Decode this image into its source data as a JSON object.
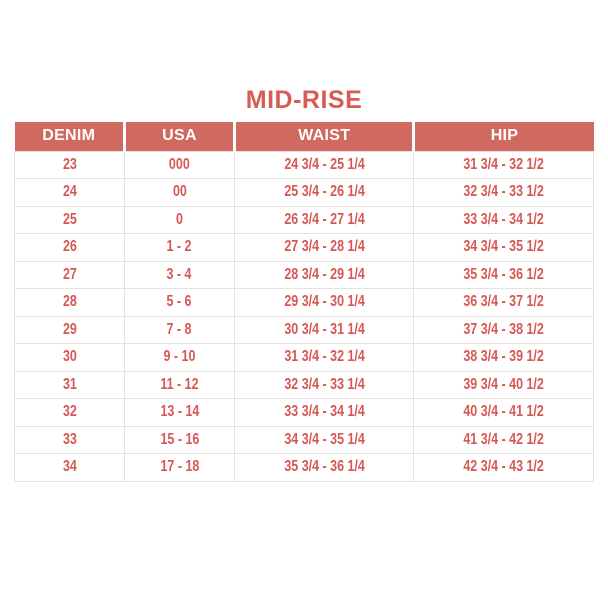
{
  "title": "MID-RISE",
  "colors": {
    "header_bg": "#d0695f",
    "title_color": "#d75c55",
    "cell_color": "#d65753",
    "border_color": "#e7e1e0",
    "header_divider": "#ffffff"
  },
  "table": {
    "columns": [
      "DENIM",
      "USA",
      "WAIST",
      "HIP"
    ],
    "column_keys": [
      "denim",
      "usa",
      "waist",
      "hip"
    ],
    "rows": [
      [
        "23",
        "000",
        "24 3/4 - 25 1/4",
        "31 3/4 - 32 1/2"
      ],
      [
        "24",
        "00",
        "25 3/4 - 26 1/4",
        "32 3/4 - 33 1/2"
      ],
      [
        "25",
        "0",
        "26 3/4 - 27 1/4",
        "33 3/4 - 34 1/2"
      ],
      [
        "26",
        "1 - 2",
        "27 3/4 - 28 1/4",
        "34 3/4 - 35 1/2"
      ],
      [
        "27",
        "3 - 4",
        "28 3/4 - 29 1/4",
        "35 3/4 - 36 1/2"
      ],
      [
        "28",
        "5 - 6",
        "29 3/4 - 30 1/4",
        "36 3/4 - 37 1/2"
      ],
      [
        "29",
        "7 - 8",
        "30 3/4 - 31 1/4",
        "37 3/4 - 38 1/2"
      ],
      [
        "30",
        "9 - 10",
        "31 3/4 - 32 1/4",
        "38 3/4 - 39 1/2"
      ],
      [
        "31",
        "11 - 12",
        "32 3/4 - 33 1/4",
        "39 3/4 - 40 1/2"
      ],
      [
        "32",
        "13 - 14",
        "33 3/4 - 34 1/4",
        "40 3/4 - 41 1/2"
      ],
      [
        "33",
        "15 - 16",
        "34 3/4 - 35 1/4",
        "41 3/4 - 42 1/2"
      ],
      [
        "34",
        "17 - 18",
        "35 3/4 - 36 1/4",
        "42 3/4 - 43 1/2"
      ]
    ]
  }
}
